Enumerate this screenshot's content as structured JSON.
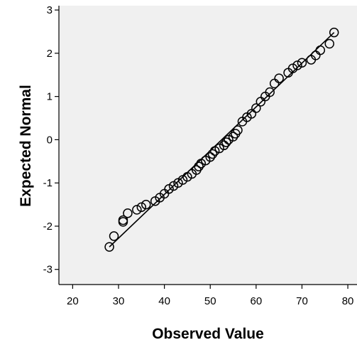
{
  "chart_data": {
    "type": "scatter",
    "title": "",
    "xlabel": "Observed Value",
    "ylabel": "Expected Normal",
    "xlim": [
      17,
      82
    ],
    "ylim": [
      -3.35,
      3.1
    ],
    "xticks": [
      20,
      30,
      40,
      50,
      60,
      70,
      80
    ],
    "yticks": [
      -3,
      -2,
      -1,
      0,
      1,
      2,
      3
    ],
    "grid": false,
    "plot_background": "#f0f0f0",
    "reference_line": {
      "x": [
        28,
        77
      ],
      "y": [
        -2.48,
        2.48
      ]
    },
    "points": [
      [
        28,
        -2.48
      ],
      [
        29,
        -2.23
      ],
      [
        31,
        -1.9
      ],
      [
        31,
        -1.86
      ],
      [
        32,
        -1.7
      ],
      [
        34,
        -1.62
      ],
      [
        35,
        -1.56
      ],
      [
        36,
        -1.5
      ],
      [
        38,
        -1.42
      ],
      [
        39,
        -1.34
      ],
      [
        40,
        -1.25
      ],
      [
        41,
        -1.14
      ],
      [
        42,
        -1.07
      ],
      [
        43,
        -1.0
      ],
      [
        44,
        -0.93
      ],
      [
        45,
        -0.86
      ],
      [
        46,
        -0.79
      ],
      [
        47,
        -0.7
      ],
      [
        47.5,
        -0.62
      ],
      [
        48,
        -0.55
      ],
      [
        49,
        -0.48
      ],
      [
        50,
        -0.4
      ],
      [
        50.5,
        -0.33
      ],
      [
        51,
        -0.26
      ],
      [
        52,
        -0.2
      ],
      [
        53,
        -0.13
      ],
      [
        53.5,
        -0.06
      ],
      [
        54,
        0.0
      ],
      [
        55,
        0.07
      ],
      [
        55.5,
        0.14
      ],
      [
        56,
        0.22
      ],
      [
        57,
        0.42
      ],
      [
        58,
        0.52
      ],
      [
        59,
        0.6
      ],
      [
        60,
        0.73
      ],
      [
        61,
        0.88
      ],
      [
        62,
        1.0
      ],
      [
        63,
        1.1
      ],
      [
        64,
        1.3
      ],
      [
        65,
        1.42
      ],
      [
        67,
        1.55
      ],
      [
        68,
        1.65
      ],
      [
        69,
        1.72
      ],
      [
        70,
        1.78
      ],
      [
        72,
        1.85
      ],
      [
        73,
        1.95
      ],
      [
        74,
        2.07
      ],
      [
        76,
        2.22
      ],
      [
        77,
        2.48
      ]
    ]
  }
}
